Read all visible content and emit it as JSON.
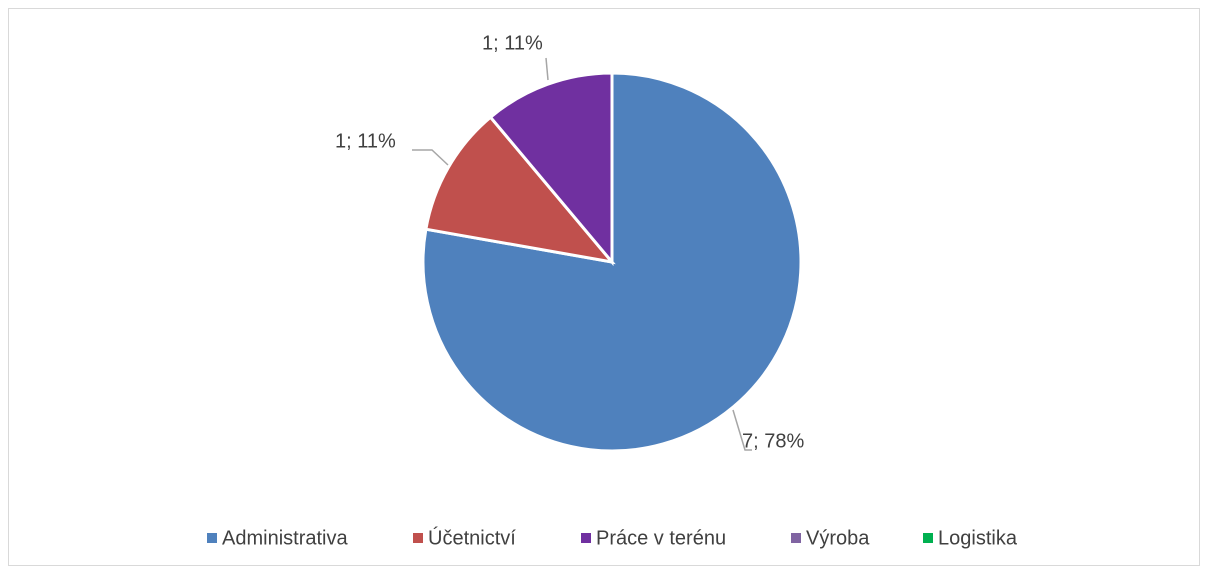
{
  "chart_data": {
    "type": "pie",
    "categories": [
      "Administrativa",
      "Účetnictví",
      "Práce v terénu",
      "Výroba",
      "Logistika"
    ],
    "values": [
      7,
      1,
      1,
      0,
      0
    ],
    "value_labels": [
      "7; 78%",
      "1; 11%",
      "1; 11%",
      null,
      null
    ],
    "colors": [
      "#4f81bd",
      "#c0504d",
      "#7030a0",
      "#8064a2",
      "#00b050"
    ],
    "legend": "bottom"
  }
}
